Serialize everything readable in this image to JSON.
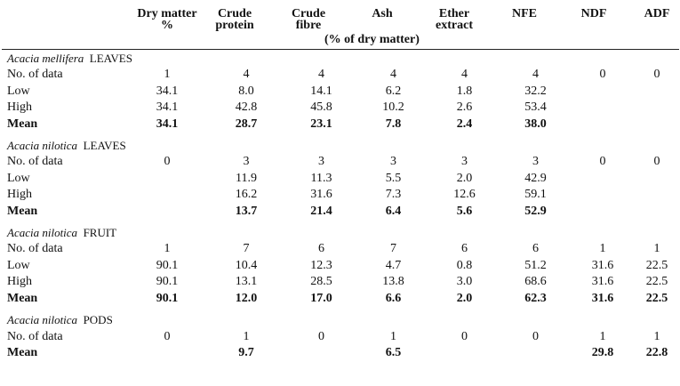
{
  "headers": {
    "dry_matter": "Dry matter",
    "dry_matter_unit": "%",
    "crude_protein": "Crude protein",
    "crude_fibre": "Crude fibre",
    "ash": "Ash",
    "ether_extract": "Ether extract",
    "nfe": "NFE",
    "ndf": "NDF",
    "adf": "ADF",
    "subnote": "(% of dry matter)"
  },
  "sections": [
    {
      "species": "Acacia mellifera",
      "part": "LEAVES",
      "rows": [
        {
          "label": "No. of data",
          "values": [
            "1",
            "4",
            "4",
            "4",
            "4",
            "4",
            "0",
            "0"
          ]
        },
        {
          "label": "Low",
          "values": [
            "34.1",
            "8.0",
            "14.1",
            "6.2",
            "1.8",
            "32.2",
            "",
            ""
          ]
        },
        {
          "label": "High",
          "values": [
            "34.1",
            "42.8",
            "45.8",
            "10.2",
            "2.6",
            "53.4",
            "",
            ""
          ]
        },
        {
          "label": "Mean",
          "values": [
            "34.1",
            "28.7",
            "23.1",
            "7.8",
            "2.4",
            "38.0",
            "",
            ""
          ]
        }
      ]
    },
    {
      "species": "Acacia nilotica",
      "part": "LEAVES",
      "rows": [
        {
          "label": "No. of data",
          "values": [
            "0",
            "3",
            "3",
            "3",
            "3",
            "3",
            "0",
            "0"
          ]
        },
        {
          "label": "Low",
          "values": [
            "",
            "11.9",
            "11.3",
            "5.5",
            "2.0",
            "42.9",
            "",
            ""
          ]
        },
        {
          "label": "High",
          "values": [
            "",
            "16.2",
            "31.6",
            "7.3",
            "12.6",
            "59.1",
            "",
            ""
          ]
        },
        {
          "label": "Mean",
          "values": [
            "",
            "13.7",
            "21.4",
            "6.4",
            "5.6",
            "52.9",
            "",
            ""
          ]
        }
      ]
    },
    {
      "species": "Acacia nilotica",
      "part": "FRUIT",
      "rows": [
        {
          "label": "No. of data",
          "values": [
            "1",
            "7",
            "6",
            "7",
            "6",
            "6",
            "1",
            "1"
          ]
        },
        {
          "label": "Low",
          "values": [
            "90.1",
            "10.4",
            "12.3",
            "4.7",
            "0.8",
            "51.2",
            "31.6",
            "22.5"
          ]
        },
        {
          "label": "High",
          "values": [
            "90.1",
            "13.1",
            "28.5",
            "13.8",
            "3.0",
            "68.6",
            "31.6",
            "22.5"
          ]
        },
        {
          "label": "Mean",
          "values": [
            "90.1",
            "12.0",
            "17.0",
            "6.6",
            "2.0",
            "62.3",
            "31.6",
            "22.5"
          ]
        }
      ]
    },
    {
      "species": "Acacia nilotica",
      "part": "PODS",
      "rows": [
        {
          "label": "No. of data",
          "values": [
            "0",
            "1",
            "0",
            "1",
            "0",
            "0",
            "1",
            "1"
          ]
        },
        {
          "label": "Mean",
          "values": [
            "",
            "9.7",
            "",
            "6.5",
            "",
            "",
            "29.8",
            "22.8"
          ]
        }
      ]
    }
  ]
}
